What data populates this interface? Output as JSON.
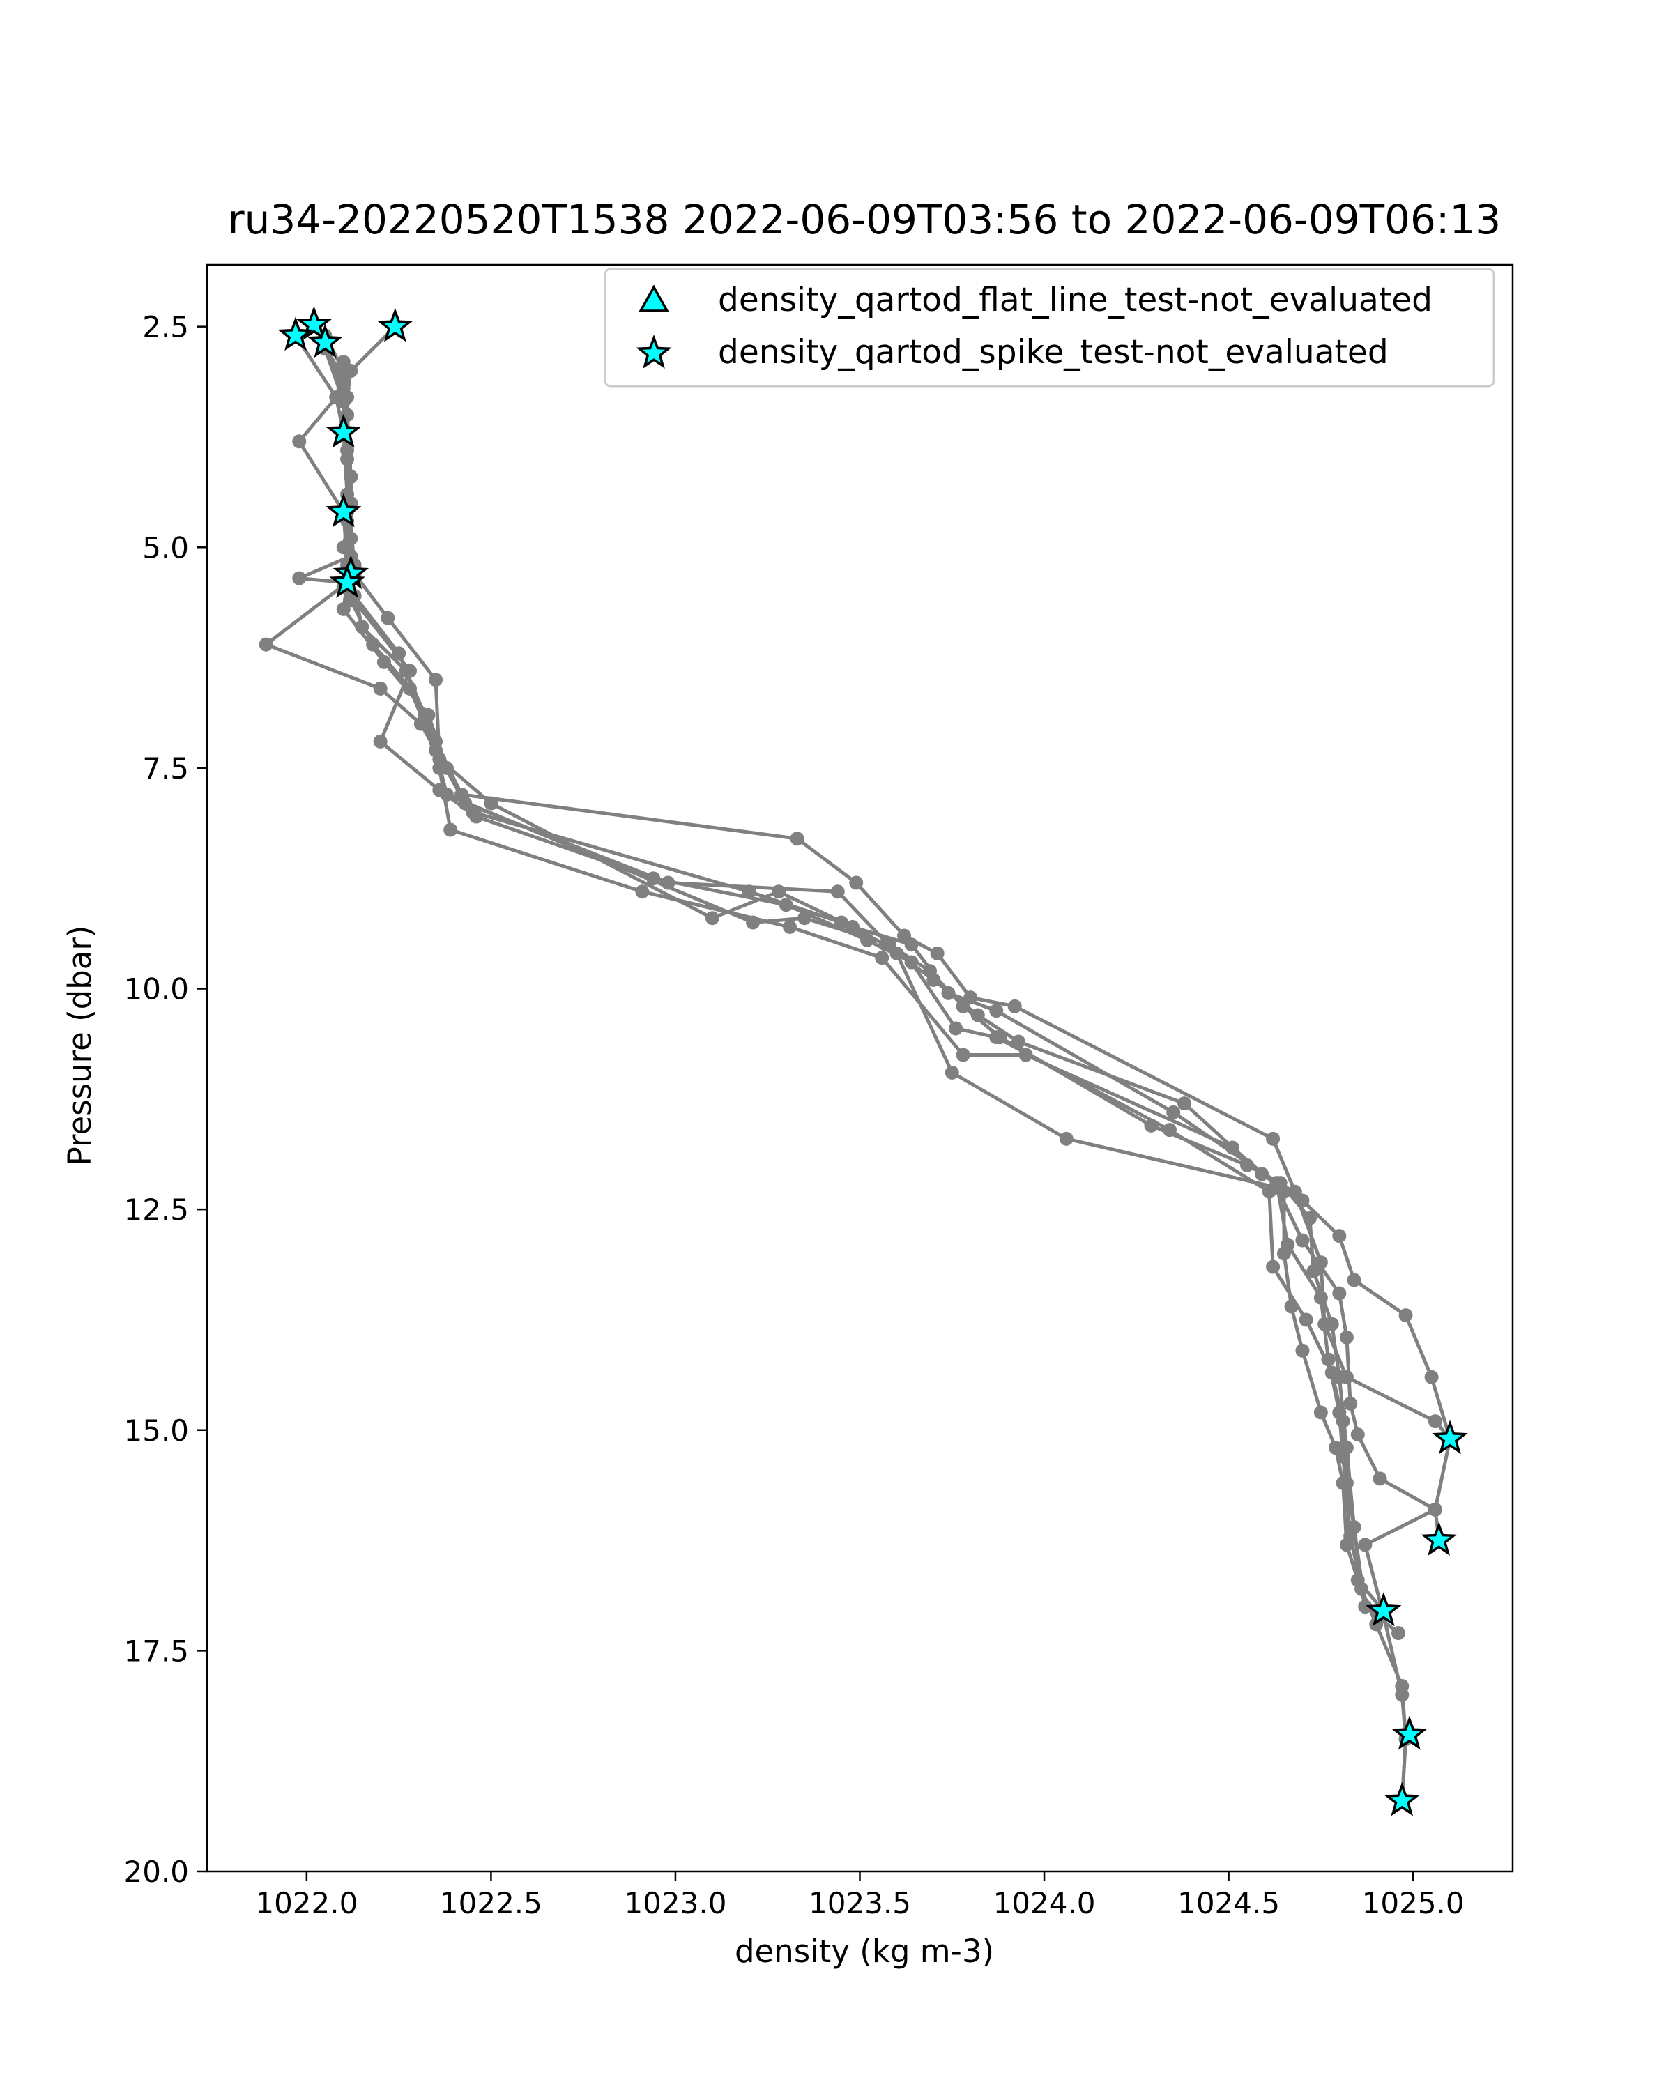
{
  "chart_data": {
    "type": "scatter",
    "title": "ru34-20220520T1538 2022-06-09T03:56 to 2022-06-09T06:13",
    "xlabel": "density (kg m-3)",
    "ylabel": "Pressure (dbar)",
    "xlim": [
      1021.73,
      1025.27
    ],
    "ylim": [
      20.0,
      1.8
    ],
    "y_inverted": true,
    "grid": false,
    "legend_position": "top-right",
    "xticks": [
      "1022.0",
      "1022.5",
      "1023.0",
      "1023.5",
      "1024.0",
      "1024.5",
      "1025.0"
    ],
    "xtick_values": [
      1022.0,
      1022.5,
      1023.0,
      1023.5,
      1024.0,
      1024.5,
      1025.0
    ],
    "yticks": [
      "2.5",
      "5.0",
      "7.5",
      "10.0",
      "12.5",
      "15.0",
      "17.5",
      "20.0"
    ],
    "ytick_values": [
      2.5,
      5.0,
      7.5,
      10.0,
      12.5,
      15.0,
      17.5,
      20.0
    ],
    "colors": {
      "profile_line": "#808080",
      "marker_fill": "#00ffff",
      "marker_edge": "#000000"
    },
    "profiles": [
      [
        [
          1022.24,
          2.5
        ],
        [
          1022.12,
          3.0
        ],
        [
          1022.11,
          3.3
        ],
        [
          1022.11,
          4.0
        ],
        [
          1022.11,
          4.6
        ],
        [
          1022.12,
          5.3
        ],
        [
          1022.15,
          5.9
        ],
        [
          1022.27,
          6.4
        ],
        [
          1022.35,
          7.2
        ],
        [
          1022.42,
          7.8
        ],
        [
          1023.33,
          8.3
        ],
        [
          1023.49,
          8.8
        ],
        [
          1023.62,
          9.4
        ],
        [
          1023.71,
          9.6
        ],
        [
          1023.8,
          10.1
        ],
        [
          1023.92,
          10.2
        ],
        [
          1024.62,
          11.7
        ],
        [
          1024.68,
          12.3
        ],
        [
          1024.75,
          13.1
        ],
        [
          1024.76,
          13.8
        ],
        [
          1024.82,
          14.4
        ],
        [
          1025.06,
          14.9
        ],
        [
          1025.1,
          15.1
        ],
        [
          1025.06,
          15.9
        ],
        [
          1024.87,
          16.3
        ],
        [
          1024.92,
          17.1
        ],
        [
          1024.97,
          18.0
        ],
        [
          1024.98,
          18.5
        ],
        [
          1024.97,
          19.2
        ]
      ],
      [
        [
          1022.02,
          2.48
        ],
        [
          1022.1,
          3.1
        ],
        [
          1022.11,
          3.5
        ],
        [
          1022.12,
          4.2
        ],
        [
          1022.12,
          4.9
        ],
        [
          1022.11,
          5.4
        ],
        [
          1022.1,
          5.7
        ],
        [
          1022.21,
          6.3
        ],
        [
          1022.33,
          6.9
        ],
        [
          1022.38,
          7.5
        ],
        [
          1022.45,
          8.0
        ],
        [
          1023.2,
          8.9
        ],
        [
          1023.45,
          9.25
        ],
        [
          1023.57,
          9.5
        ],
        [
          1023.7,
          9.9
        ],
        [
          1023.82,
          10.3
        ],
        [
          1023.93,
          10.6
        ],
        [
          1024.38,
          11.3
        ],
        [
          1024.59,
          12.1
        ],
        [
          1024.7,
          12.4
        ],
        [
          1024.8,
          12.8
        ],
        [
          1024.84,
          13.3
        ],
        [
          1024.98,
          13.7
        ],
        [
          1025.05,
          14.4
        ],
        [
          1025.1,
          15.1
        ]
      ],
      [
        [
          1022.05,
          2.6
        ],
        [
          1022.1,
          3.0
        ],
        [
          1022.1,
          3.7
        ],
        [
          1022.11,
          4.4
        ],
        [
          1022.13,
          5.2
        ],
        [
          1022.12,
          5.6
        ],
        [
          1022.18,
          6.1
        ],
        [
          1022.28,
          6.6
        ],
        [
          1022.35,
          7.3
        ],
        [
          1022.38,
          7.8
        ],
        [
          1023.21,
          9.25
        ],
        [
          1023.35,
          9.2
        ],
        [
          1023.58,
          9.5
        ],
        [
          1023.69,
          9.8
        ],
        [
          1023.78,
          10.2
        ],
        [
          1023.88,
          10.55
        ],
        [
          1024.29,
          11.55
        ],
        [
          1024.55,
          12.0
        ],
        [
          1024.64,
          12.2
        ],
        [
          1024.72,
          12.6
        ],
        [
          1024.73,
          13.2
        ],
        [
          1024.78,
          13.8
        ],
        [
          1024.8,
          14.4
        ],
        [
          1024.82,
          15.2
        ],
        [
          1024.84,
          16.1
        ],
        [
          1024.87,
          17.0
        ],
        [
          1024.92,
          17.05
        ]
      ],
      [
        [
          1021.97,
          2.6
        ],
        [
          1022.08,
          3.3
        ],
        [
          1022.1,
          3.7
        ],
        [
          1022.12,
          4.5
        ],
        [
          1022.1,
          5.0
        ],
        [
          1022.13,
          5.3
        ],
        [
          1022.22,
          5.8
        ],
        [
          1022.35,
          6.5
        ],
        [
          1022.36,
          7.4
        ],
        [
          1022.5,
          7.9
        ],
        [
          1023.1,
          9.2
        ],
        [
          1023.28,
          8.9
        ],
        [
          1023.48,
          9.3
        ],
        [
          1023.64,
          9.5
        ],
        [
          1023.74,
          10.05
        ],
        [
          1023.87,
          10.25
        ],
        [
          1024.35,
          11.4
        ],
        [
          1024.63,
          12.2
        ],
        [
          1024.66,
          12.9
        ],
        [
          1024.75,
          13.5
        ],
        [
          1024.77,
          14.2
        ],
        [
          1024.8,
          14.8
        ],
        [
          1024.81,
          15.3
        ],
        [
          1024.83,
          16.2
        ],
        [
          1024.87,
          17.0
        ],
        [
          1024.96,
          17.3
        ]
      ],
      [
        [
          1022.05,
          2.7
        ],
        [
          1022.1,
          3.2
        ],
        [
          1021.98,
          3.8
        ],
        [
          1022.1,
          4.6
        ],
        [
          1022.11,
          5.2
        ],
        [
          1022.13,
          5.55
        ],
        [
          1022.25,
          6.2
        ],
        [
          1022.32,
          6.9
        ],
        [
          1022.36,
          7.5
        ],
        [
          1022.39,
          8.2
        ],
        [
          1022.91,
          8.9
        ],
        [
          1023.31,
          9.3
        ],
        [
          1023.56,
          9.65
        ],
        [
          1023.78,
          10.75
        ],
        [
          1023.95,
          10.75
        ],
        [
          1024.51,
          11.8
        ],
        [
          1024.65,
          12.3
        ],
        [
          1024.65,
          13.0
        ],
        [
          1024.67,
          13.6
        ],
        [
          1024.7,
          14.1
        ],
        [
          1024.75,
          14.8
        ],
        [
          1024.79,
          15.2
        ],
        [
          1024.81,
          15.6
        ],
        [
          1024.82,
          16.3
        ],
        [
          1024.85,
          16.7
        ],
        [
          1024.92,
          17.05
        ]
      ],
      [
        [
          1022.05,
          2.75
        ],
        [
          1022.1,
          3.35
        ],
        [
          1022.11,
          3.9
        ],
        [
          1022.11,
          4.7
        ],
        [
          1022.12,
          5.1
        ],
        [
          1021.98,
          5.35
        ],
        [
          1022.11,
          5.4
        ],
        [
          1021.89,
          6.1
        ],
        [
          1022.2,
          6.6
        ],
        [
          1022.31,
          7.0
        ],
        [
          1022.43,
          7.9
        ],
        [
          1022.98,
          8.8
        ],
        [
          1023.44,
          8.9
        ],
        [
          1023.6,
          9.6
        ],
        [
          1023.75,
          10.95
        ],
        [
          1024.06,
          11.7
        ],
        [
          1024.63,
          12.25
        ],
        [
          1024.7,
          12.85
        ],
        [
          1024.8,
          13.45
        ],
        [
          1024.82,
          13.95
        ],
        [
          1024.83,
          14.7
        ],
        [
          1024.85,
          15.05
        ],
        [
          1024.91,
          15.55
        ],
        [
          1025.06,
          15.9
        ],
        [
          1025.07,
          16.25
        ]
      ],
      [
        [
          1022.1,
          2.9
        ],
        [
          1022.11,
          3.5
        ],
        [
          1022.12,
          4.2
        ],
        [
          1022.12,
          5.25
        ],
        [
          1022.1,
          5.45
        ],
        [
          1022.28,
          6.4
        ],
        [
          1022.2,
          7.2
        ],
        [
          1022.36,
          7.75
        ],
        [
          1022.46,
          8.05
        ],
        [
          1022.94,
          8.75
        ],
        [
          1023.3,
          9.05
        ],
        [
          1023.52,
          9.45
        ],
        [
          1023.64,
          9.7
        ],
        [
          1023.76,
          10.45
        ],
        [
          1023.87,
          10.55
        ],
        [
          1024.34,
          11.6
        ],
        [
          1024.61,
          12.3
        ],
        [
          1024.62,
          13.15
        ],
        [
          1024.71,
          13.75
        ],
        [
          1024.78,
          14.35
        ],
        [
          1024.81,
          14.9
        ],
        [
          1024.82,
          15.6
        ],
        [
          1024.84,
          16.1
        ],
        [
          1024.86,
          16.8
        ],
        [
          1024.9,
          17.2
        ],
        [
          1024.97,
          17.9
        ],
        [
          1024.98,
          18.5
        ],
        [
          1024.97,
          19.2
        ]
      ]
    ],
    "marker_series": [
      {
        "name": "density_qartod_flat_line_test-not_evaluated",
        "marker": "triangle",
        "points": []
      },
      {
        "name": "density_qartod_spike_test-not_evaluated",
        "marker": "star",
        "points": [
          [
            1022.02,
            2.48
          ],
          [
            1021.97,
            2.6
          ],
          [
            1022.05,
            2.68
          ],
          [
            1022.24,
            2.5
          ],
          [
            1022.1,
            3.7
          ],
          [
            1022.1,
            4.6
          ],
          [
            1022.12,
            5.3
          ],
          [
            1022.11,
            5.4
          ],
          [
            1025.1,
            15.1
          ],
          [
            1025.07,
            16.25
          ],
          [
            1024.92,
            17.05
          ],
          [
            1024.99,
            18.45
          ],
          [
            1024.97,
            19.2
          ]
        ]
      }
    ]
  }
}
